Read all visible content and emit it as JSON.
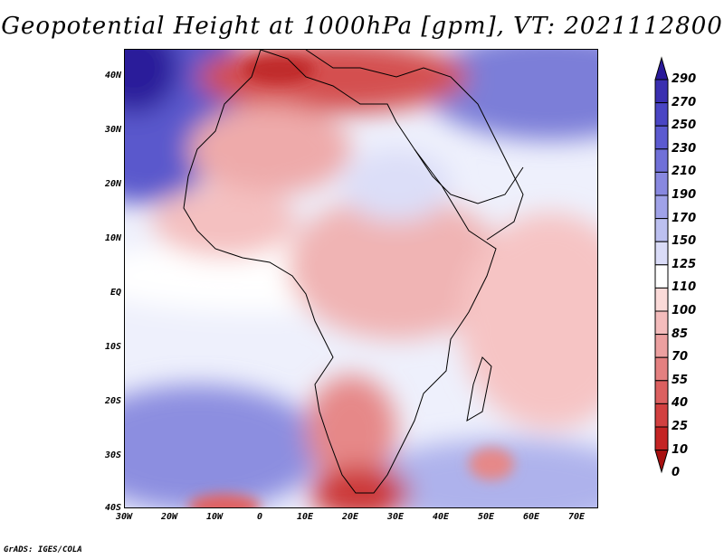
{
  "title": "Geopotential Height at 1000hPa [gpm], VT: 2021112800",
  "lat_labels": [
    "40N",
    "30N",
    "20N",
    "10N",
    "EQ",
    "10S",
    "20S",
    "30S",
    "40S"
  ],
  "lon_labels": [
    "30W",
    "20W",
    "10W",
    "0",
    "10E",
    "20E",
    "30E",
    "40E",
    "50E",
    "60E",
    "70E"
  ],
  "colorbar": {
    "levels": [
      "290",
      "270",
      "250",
      "230",
      "210",
      "190",
      "170",
      "150",
      "125",
      "110",
      "100",
      "85",
      "70",
      "55",
      "40",
      "25",
      "10",
      "0"
    ],
    "colors": [
      "#2a1a9a",
      "#3a2fb0",
      "#4a45c4",
      "#5c5ad0",
      "#7070d8",
      "#8888e0",
      "#a0a2e8",
      "#bcc0f0",
      "#dadcf8",
      "#ffffff",
      "#fbdad8",
      "#f4bcbc",
      "#eca0a0",
      "#e48080",
      "#dc6060",
      "#d24040",
      "#c42424",
      "#a81010"
    ]
  },
  "credit": "GrADS: IGES/COLA"
}
